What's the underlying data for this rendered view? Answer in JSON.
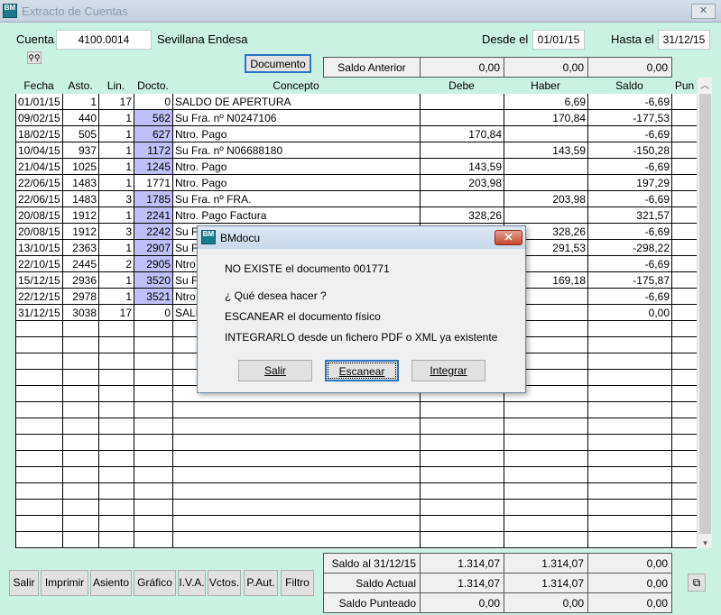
{
  "window": {
    "title": "Extracto de Cuentas",
    "icon": "BM"
  },
  "header": {
    "cuenta_label": "Cuenta",
    "cuenta_value": "4100.0014",
    "cuenta_name": "Sevillana Endesa",
    "desde_label": "Desde el",
    "desde_value": "01/01/15",
    "hasta_label": "Hasta el",
    "hasta_value": "31/12/15",
    "documento_button": "Documento",
    "search_icon": "binoculars-icon"
  },
  "saldo_anterior": {
    "label": "Saldo Anterior",
    "debe": "0,00",
    "haber": "0,00",
    "saldo": "0,00"
  },
  "table": {
    "columns": [
      "Fecha",
      "Asto.",
      "Lin.",
      "Docto.",
      "Concepto",
      "Debe",
      "Haber",
      "Saldo",
      "Pun"
    ],
    "highlight_color": "#c0c0f8",
    "rows": [
      {
        "fecha": "01/01/15",
        "asto": "1",
        "lin": "17",
        "docto": "0",
        "concepto": "SALDO DE APERTURA",
        "debe": "",
        "haber": "6,69",
        "saldo": "-6,69",
        "hl": false
      },
      {
        "fecha": "09/02/15",
        "asto": "440",
        "lin": "1",
        "docto": "562",
        "concepto": "Su Fra. nº N0247106",
        "debe": "",
        "haber": "170,84",
        "saldo": "-177,53",
        "hl": true
      },
      {
        "fecha": "18/02/15",
        "asto": "505",
        "lin": "1",
        "docto": "627",
        "concepto": "Ntro. Pago",
        "debe": "170,84",
        "haber": "",
        "saldo": "-6,69",
        "hl": true
      },
      {
        "fecha": "10/04/15",
        "asto": "937",
        "lin": "1",
        "docto": "1172",
        "concepto": "Su Fra. nº N06688180",
        "debe": "",
        "haber": "143,59",
        "saldo": "-150,28",
        "hl": true
      },
      {
        "fecha": "21/04/15",
        "asto": "1025",
        "lin": "1",
        "docto": "1245",
        "concepto": "Ntro. Pago",
        "debe": "143,59",
        "haber": "",
        "saldo": "-6,69",
        "hl": true
      },
      {
        "fecha": "22/06/15",
        "asto": "1483",
        "lin": "1",
        "docto": "1771",
        "concepto": "Ntro. Pago",
        "debe": "203,98",
        "haber": "",
        "saldo": "197,29",
        "hl": false
      },
      {
        "fecha": "22/06/15",
        "asto": "1483",
        "lin": "3",
        "docto": "1785",
        "concepto": "Su Fra. nº FRA.",
        "debe": "",
        "haber": "203,98",
        "saldo": "-6,69",
        "hl": true
      },
      {
        "fecha": "20/08/15",
        "asto": "1912",
        "lin": "1",
        "docto": "2241",
        "concepto": "Ntro. Pago Factura",
        "debe": "328,26",
        "haber": "",
        "saldo": "321,57",
        "hl": true
      },
      {
        "fecha": "20/08/15",
        "asto": "1912",
        "lin": "3",
        "docto": "2242",
        "concepto": "Su F",
        "debe": "",
        "haber": "328,26",
        "saldo": "-6,69",
        "hl": true
      },
      {
        "fecha": "13/10/15",
        "asto": "2363",
        "lin": "1",
        "docto": "2907",
        "concepto": "Su F",
        "debe": "",
        "haber": "291,53",
        "saldo": "-298,22",
        "hl": true
      },
      {
        "fecha": "22/10/15",
        "asto": "2445",
        "lin": "2",
        "docto": "2905",
        "concepto": "Ntro",
        "debe": "",
        "haber": "",
        "saldo": "-6,69",
        "hl": true
      },
      {
        "fecha": "15/12/15",
        "asto": "2936",
        "lin": "1",
        "docto": "3520",
        "concepto": "Su F",
        "debe": "",
        "haber": "169,18",
        "saldo": "-175,87",
        "hl": true
      },
      {
        "fecha": "22/12/15",
        "asto": "2978",
        "lin": "1",
        "docto": "3521",
        "concepto": "Ntro",
        "debe": "",
        "haber": "",
        "saldo": "-6,69",
        "hl": true
      },
      {
        "fecha": "31/12/15",
        "asto": "3038",
        "lin": "17",
        "docto": "0",
        "concepto": "SALI",
        "debe": "",
        "haber": "",
        "saldo": "0,00",
        "hl": false
      }
    ]
  },
  "summary": [
    {
      "label": "Saldo al 31/12/15",
      "debe": "1.314,07",
      "haber": "1.314,07",
      "saldo": "0,00"
    },
    {
      "label": "Saldo Actual",
      "debe": "1.314,07",
      "haber": "1.314,07",
      "saldo": "0,00"
    },
    {
      "label": "Saldo Punteado",
      "debe": "0,00",
      "haber": "0,00",
      "saldo": "0,00"
    }
  ],
  "buttons": [
    "Salir",
    "Imprimir",
    "Asiento",
    "Gráfico",
    "I.V.A.",
    "Vctos.",
    "P.Aut.",
    "Filtro"
  ],
  "copy_icon": "copy-icon",
  "dialog": {
    "title": "BMdocu",
    "line1": "NO EXISTE el documento 001771",
    "line2": "¿ Qué desea hacer ?",
    "line3": "ESCANEAR el documento físico",
    "line4": "INTEGRARLO desde un fichero PDF o XML ya existente",
    "btn_salir": "Salir",
    "btn_escanear": "Escanear",
    "btn_integrar": "Integrar"
  }
}
